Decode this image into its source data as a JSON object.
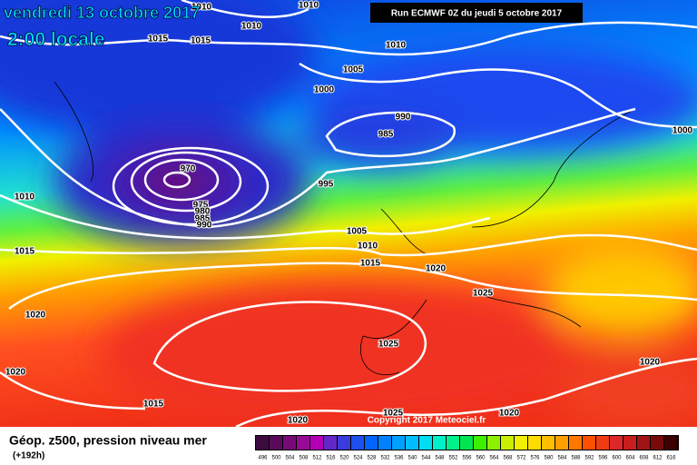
{
  "header": {
    "date": "vendredi 13 octobre 2017",
    "time": "2:00 locale",
    "run": "Run ECMWF 0Z du jeudi 5 octobre 2017"
  },
  "footer": {
    "title": "Géop. z500, pression niveau mer",
    "lead": "(+192h)",
    "copyright": "Copyright 2017 Meteociel.fr"
  },
  "isobar_labels": [
    1010,
    1010,
    1010,
    1015,
    1015,
    1010,
    1005,
    1000,
    990,
    985,
    1000,
    970,
    995,
    975,
    980,
    985,
    990,
    1010,
    1005,
    1010,
    1015,
    1015,
    1020,
    1025,
    1020,
    1025,
    1020,
    1020,
    1015,
    1025,
    1020,
    1020
  ],
  "legend": {
    "levels": [
      496,
      500,
      504,
      508,
      512,
      516,
      520,
      524,
      528,
      532,
      536,
      540,
      544,
      548,
      552,
      556,
      560,
      564,
      568,
      572,
      576,
      580,
      584,
      588,
      592,
      596,
      600,
      604,
      608,
      612,
      616
    ],
    "colors": [
      "#3c0a3c",
      "#5a0a5a",
      "#780a78",
      "#960a96",
      "#b400b4",
      "#6428c8",
      "#3c3cdc",
      "#1e50f0",
      "#0064ff",
      "#0082ff",
      "#00a0ff",
      "#00beff",
      "#00dcf0",
      "#00f0c8",
      "#00f08c",
      "#00e650",
      "#3cf000",
      "#8cf000",
      "#c8f000",
      "#f0f000",
      "#ffdc00",
      "#ffbe00",
      "#ffa000",
      "#ff7800",
      "#ff5000",
      "#f03c14",
      "#dc2828",
      "#c81e1e",
      "#a01414",
      "#780a0a",
      "#3c0000"
    ]
  }
}
